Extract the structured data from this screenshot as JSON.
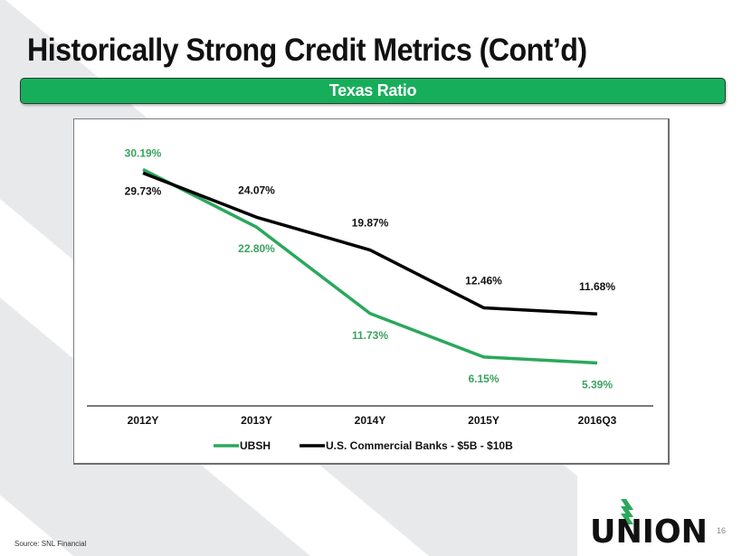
{
  "slide": {
    "title": "Historically Strong Credit Metrics (Cont’d)",
    "banner": "Texas Ratio",
    "source": "Source:  SNL Financial",
    "page_number": "16",
    "logo_text": "UNION",
    "colors": {
      "brand_green": "#17ae5b",
      "series_green": "#2aa85c",
      "series_black": "#000000",
      "background_stripe": "#e8e9eb"
    }
  },
  "chart_data": {
    "type": "line",
    "title": "Texas Ratio",
    "xlabel": "",
    "ylabel": "",
    "categories": [
      "2012Y",
      "2013Y",
      "2014Y",
      "2015Y",
      "2016Q3"
    ],
    "series": [
      {
        "name": "UBSH",
        "color": "#2aa85c",
        "values": [
          30.19,
          22.8,
          11.73,
          6.15,
          5.39
        ],
        "labels": [
          "30.19%",
          "22.80%",
          "11.73%",
          "6.15%",
          "5.39%"
        ],
        "label_side": [
          "above",
          "below",
          "below",
          "below",
          "below"
        ]
      },
      {
        "name": "U.S. Commercial Banks - $5B - $10B",
        "color": "#000000",
        "values": [
          29.73,
          24.07,
          19.87,
          12.46,
          11.68
        ],
        "labels": [
          "29.73%",
          "24.07%",
          "19.87%",
          "12.46%",
          "11.68%"
        ],
        "label_side": [
          "below",
          "above",
          "above",
          "above",
          "above"
        ]
      }
    ],
    "ylim": [
      0,
      35
    ],
    "grid": false,
    "legend": "bottom"
  }
}
